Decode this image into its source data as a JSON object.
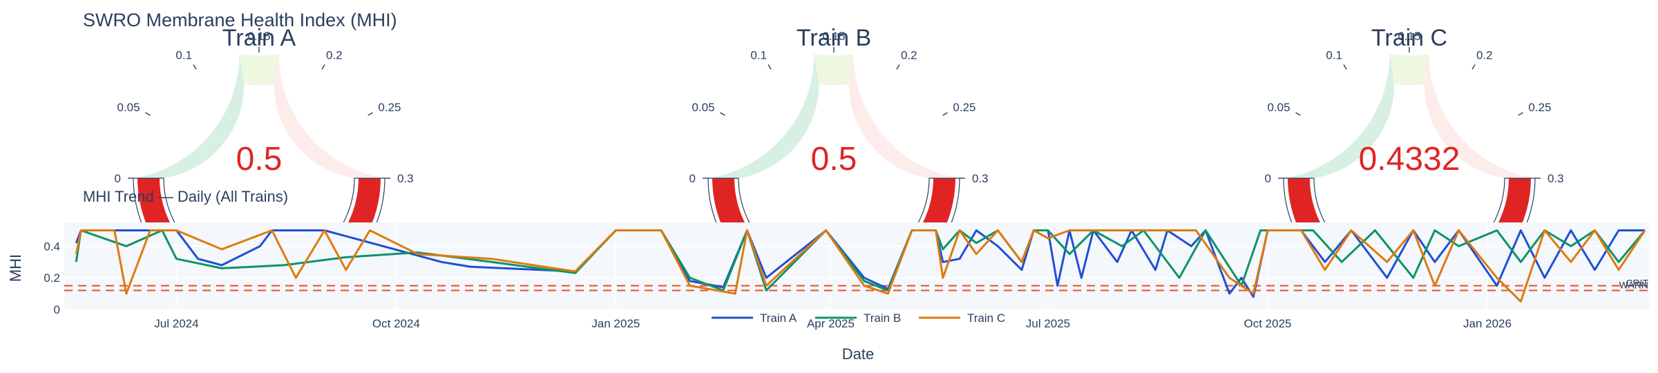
{
  "title": "SWRO Membrane Health Index (MHI)",
  "gauges": [
    {
      "name": "Train A",
      "value": 0.5,
      "value_label": "0.5"
    },
    {
      "name": "Train B",
      "value": 0.5,
      "value_label": "0.5"
    },
    {
      "name": "Train C",
      "value": 0.4332,
      "value_label": "0.4332"
    }
  ],
  "gauge_axis": {
    "range": [
      0,
      0.3
    ],
    "ticks": [
      0,
      0.05,
      0.1,
      0.15,
      0.2,
      0.25,
      0.3
    ],
    "tick_labels": [
      "0",
      "0.05",
      "0.1",
      "0.15",
      "0.2",
      "0.25",
      "0.3"
    ],
    "bar_color": "#e02424",
    "band_colors": [
      "#d8f0e2",
      "#eef7e0",
      "#fdecea"
    ]
  },
  "trend": {
    "subtitle": "MHI Trend — Daily (All Trains)",
    "xlabel": "Date",
    "ylabel": "MHI"
  },
  "chart_data": {
    "type": "line",
    "xlabel": "Date",
    "ylabel": "MHI",
    "xlim": [
      "2024-05-15",
      "2026-03-10"
    ],
    "ylim": [
      0,
      0.55
    ],
    "x_ticks": [
      "2024-07-01",
      "2024-10-01",
      "2025-01-01",
      "2025-04-01",
      "2025-07-01",
      "2025-10-01",
      "2026-01-01"
    ],
    "x_tick_labels": [
      "Jul 2024",
      "Oct 2024",
      "Jan 2025",
      "Apr 2025",
      "Jul 2025",
      "Oct 2025",
      "Jan 2026"
    ],
    "y_ticks": [
      0,
      0.2,
      0.4
    ],
    "y_tick_labels": [
      "0",
      "0.2",
      "0.4"
    ],
    "legend_position": "bottom-center",
    "thresholds": [
      {
        "value": 0.15,
        "label": "WARN",
        "color": "#e8501e"
      },
      {
        "value": 0.12,
        "label": "CRIT",
        "color": "#e8501e"
      }
    ],
    "series": [
      {
        "name": "Train A",
        "color": "#1f4fd6",
        "points": [
          [
            "2024-05-20",
            0.42
          ],
          [
            "2024-05-22",
            0.5
          ],
          [
            "2024-06-05",
            0.5
          ],
          [
            "2024-06-20",
            0.5
          ],
          [
            "2024-07-01",
            0.5
          ],
          [
            "2024-07-10",
            0.32
          ],
          [
            "2024-07-20",
            0.28
          ],
          [
            "2024-08-05",
            0.4
          ],
          [
            "2024-08-10",
            0.5
          ],
          [
            "2024-09-01",
            0.5
          ],
          [
            "2024-10-20",
            0.3
          ],
          [
            "2024-11-01",
            0.27
          ],
          [
            "2024-12-15",
            0.24
          ],
          [
            "2025-01-01",
            0.5
          ],
          [
            "2025-01-20",
            0.5
          ],
          [
            "2025-02-01",
            0.18
          ],
          [
            "2025-02-15",
            0.14
          ],
          [
            "2025-02-25",
            0.5
          ],
          [
            "2025-03-05",
            0.2
          ],
          [
            "2025-03-30",
            0.5
          ],
          [
            "2025-04-15",
            0.2
          ],
          [
            "2025-04-25",
            0.13
          ],
          [
            "2025-05-05",
            0.5
          ],
          [
            "2025-05-15",
            0.5
          ],
          [
            "2025-05-18",
            0.3
          ],
          [
            "2025-05-25",
            0.32
          ],
          [
            "2025-06-01",
            0.5
          ],
          [
            "2025-06-10",
            0.4
          ],
          [
            "2025-06-20",
            0.25
          ],
          [
            "2025-06-25",
            0.5
          ],
          [
            "2025-07-01",
            0.5
          ],
          [
            "2025-07-05",
            0.15
          ],
          [
            "2025-07-10",
            0.5
          ],
          [
            "2025-07-15",
            0.2
          ],
          [
            "2025-07-20",
            0.5
          ],
          [
            "2025-07-30",
            0.3
          ],
          [
            "2025-08-05",
            0.5
          ],
          [
            "2025-08-15",
            0.25
          ],
          [
            "2025-08-20",
            0.5
          ],
          [
            "2025-08-30",
            0.4
          ],
          [
            "2025-09-05",
            0.5
          ],
          [
            "2025-09-15",
            0.1
          ],
          [
            "2025-09-20",
            0.2
          ],
          [
            "2025-09-25",
            0.08
          ],
          [
            "2025-10-01",
            0.5
          ],
          [
            "2025-10-15",
            0.5
          ],
          [
            "2025-10-25",
            0.3
          ],
          [
            "2025-11-05",
            0.5
          ],
          [
            "2025-11-20",
            0.2
          ],
          [
            "2025-12-01",
            0.5
          ],
          [
            "2025-12-10",
            0.3
          ],
          [
            "2025-12-20",
            0.5
          ],
          [
            "2026-01-05",
            0.15
          ],
          [
            "2026-01-15",
            0.5
          ],
          [
            "2026-01-25",
            0.2
          ],
          [
            "2026-02-05",
            0.5
          ],
          [
            "2026-02-15",
            0.25
          ],
          [
            "2026-02-25",
            0.5
          ],
          [
            "2026-03-08",
            0.5
          ]
        ]
      },
      {
        "name": "Train B",
        "color": "#0c9467",
        "points": [
          [
            "2024-05-20",
            0.3
          ],
          [
            "2024-05-22",
            0.5
          ],
          [
            "2024-06-10",
            0.4
          ],
          [
            "2024-06-25",
            0.5
          ],
          [
            "2024-07-01",
            0.32
          ],
          [
            "2024-07-20",
            0.26
          ],
          [
            "2024-08-15",
            0.28
          ],
          [
            "2024-09-10",
            0.33
          ],
          [
            "2024-10-10",
            0.36
          ],
          [
            "2024-11-10",
            0.3
          ],
          [
            "2024-12-15",
            0.23
          ],
          [
            "2025-01-01",
            0.5
          ],
          [
            "2025-01-20",
            0.5
          ],
          [
            "2025-02-01",
            0.2
          ],
          [
            "2025-02-15",
            0.12
          ],
          [
            "2025-02-25",
            0.5
          ],
          [
            "2025-03-05",
            0.12
          ],
          [
            "2025-03-30",
            0.5
          ],
          [
            "2025-04-15",
            0.18
          ],
          [
            "2025-04-25",
            0.12
          ],
          [
            "2025-05-05",
            0.5
          ],
          [
            "2025-05-15",
            0.5
          ],
          [
            "2025-05-18",
            0.38
          ],
          [
            "2025-05-25",
            0.5
          ],
          [
            "2025-06-01",
            0.42
          ],
          [
            "2025-06-10",
            0.5
          ],
          [
            "2025-06-20",
            0.3
          ],
          [
            "2025-06-25",
            0.5
          ],
          [
            "2025-07-01",
            0.5
          ],
          [
            "2025-07-10",
            0.35
          ],
          [
            "2025-07-20",
            0.5
          ],
          [
            "2025-08-01",
            0.4
          ],
          [
            "2025-08-10",
            0.5
          ],
          [
            "2025-08-25",
            0.2
          ],
          [
            "2025-09-05",
            0.5
          ],
          [
            "2025-09-20",
            0.15
          ],
          [
            "2025-09-28",
            0.5
          ],
          [
            "2025-10-01",
            0.5
          ],
          [
            "2025-10-20",
            0.5
          ],
          [
            "2025-11-01",
            0.3
          ],
          [
            "2025-11-15",
            0.5
          ],
          [
            "2025-12-01",
            0.2
          ],
          [
            "2025-12-10",
            0.5
          ],
          [
            "2025-12-20",
            0.4
          ],
          [
            "2026-01-05",
            0.5
          ],
          [
            "2026-01-15",
            0.3
          ],
          [
            "2026-01-25",
            0.5
          ],
          [
            "2026-02-05",
            0.4
          ],
          [
            "2026-02-15",
            0.5
          ],
          [
            "2026-02-25",
            0.3
          ],
          [
            "2026-03-08",
            0.5
          ]
        ]
      },
      {
        "name": "Train C",
        "color": "#de7a10",
        "points": [
          [
            "2024-05-20",
            0.35
          ],
          [
            "2024-05-22",
            0.5
          ],
          [
            "2024-06-05",
            0.5
          ],
          [
            "2024-06-10",
            0.1
          ],
          [
            "2024-06-20",
            0.5
          ],
          [
            "2024-07-01",
            0.5
          ],
          [
            "2024-07-20",
            0.38
          ],
          [
            "2024-08-10",
            0.5
          ],
          [
            "2024-08-20",
            0.2
          ],
          [
            "2024-09-01",
            0.5
          ],
          [
            "2024-09-10",
            0.25
          ],
          [
            "2024-09-20",
            0.5
          ],
          [
            "2024-10-10",
            0.35
          ],
          [
            "2024-11-10",
            0.32
          ],
          [
            "2024-12-15",
            0.24
          ],
          [
            "2025-01-01",
            0.5
          ],
          [
            "2025-01-20",
            0.5
          ],
          [
            "2025-02-01",
            0.15
          ],
          [
            "2025-02-20",
            0.1
          ],
          [
            "2025-02-25",
            0.5
          ],
          [
            "2025-03-05",
            0.15
          ],
          [
            "2025-03-30",
            0.5
          ],
          [
            "2025-04-15",
            0.15
          ],
          [
            "2025-04-25",
            0.1
          ],
          [
            "2025-05-05",
            0.5
          ],
          [
            "2025-05-15",
            0.5
          ],
          [
            "2025-05-18",
            0.2
          ],
          [
            "2025-05-25",
            0.5
          ],
          [
            "2025-06-01",
            0.35
          ],
          [
            "2025-06-10",
            0.5
          ],
          [
            "2025-06-20",
            0.3
          ],
          [
            "2025-06-25",
            0.5
          ],
          [
            "2025-07-01",
            0.45
          ],
          [
            "2025-07-10",
            0.5
          ],
          [
            "2025-07-20",
            0.5
          ],
          [
            "2025-08-01",
            0.5
          ],
          [
            "2025-08-15",
            0.5
          ],
          [
            "2025-09-01",
            0.5
          ],
          [
            "2025-09-15",
            0.2
          ],
          [
            "2025-09-25",
            0.1
          ],
          [
            "2025-10-01",
            0.5
          ],
          [
            "2025-10-15",
            0.5
          ],
          [
            "2025-10-25",
            0.25
          ],
          [
            "2025-11-05",
            0.5
          ],
          [
            "2025-11-20",
            0.3
          ],
          [
            "2025-12-01",
            0.5
          ],
          [
            "2025-12-10",
            0.15
          ],
          [
            "2025-12-20",
            0.5
          ],
          [
            "2026-01-05",
            0.2
          ],
          [
            "2026-01-15",
            0.05
          ],
          [
            "2026-01-25",
            0.5
          ],
          [
            "2026-02-05",
            0.3
          ],
          [
            "2026-02-15",
            0.5
          ],
          [
            "2026-02-25",
            0.25
          ],
          [
            "2026-03-08",
            0.5
          ]
        ]
      }
    ]
  }
}
